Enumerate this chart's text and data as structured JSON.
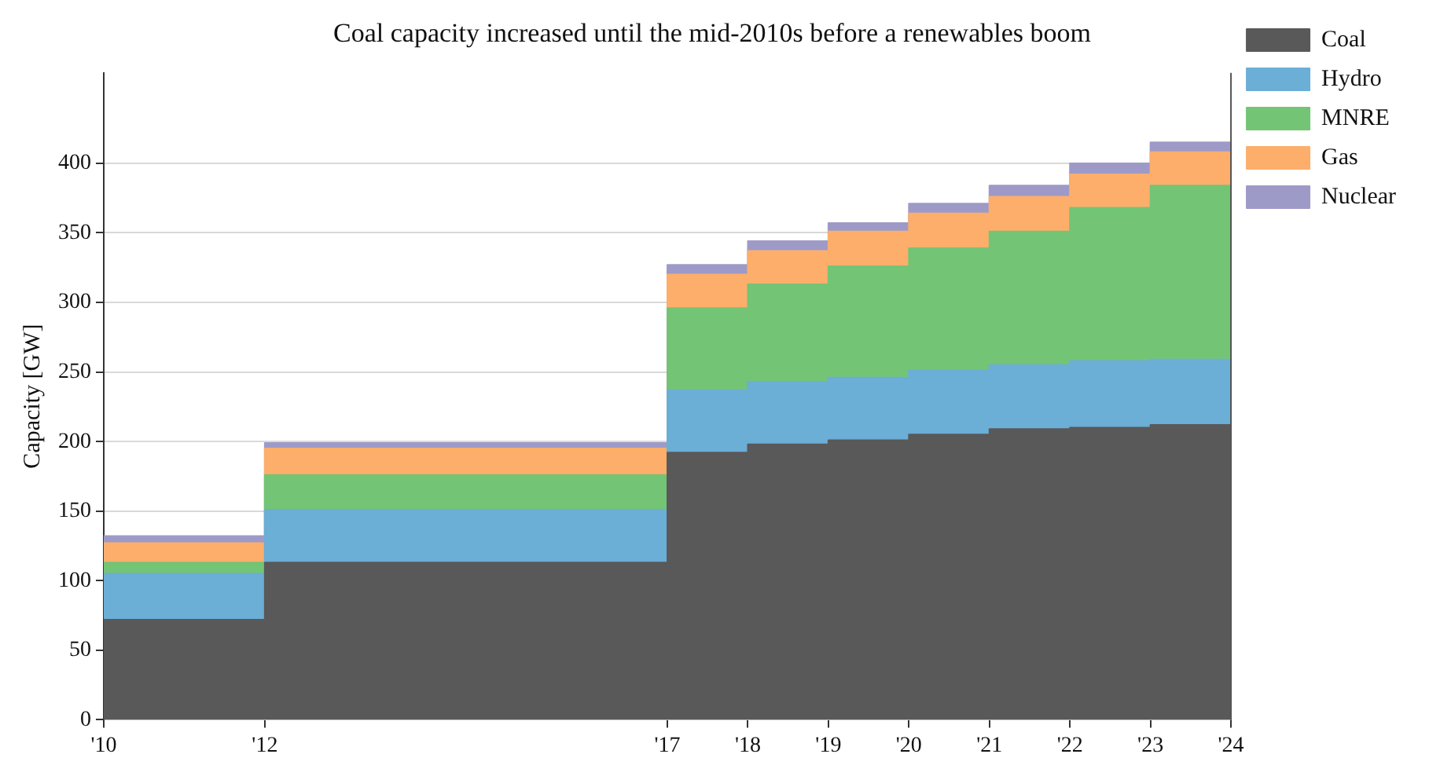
{
  "chart_data": {
    "type": "area",
    "title": "Coal capacity increased until the mid-2010s before a renewables boom",
    "ylabel": "Capacity [GW]",
    "stacked": true,
    "x": [
      2010,
      2012,
      2012,
      2017,
      2017,
      2018,
      2018,
      2019,
      2019,
      2020,
      2020,
      2021,
      2021,
      2022,
      2022,
      2023,
      2023,
      2024
    ],
    "series": [
      {
        "name": "Coal",
        "color": "#595959",
        "values": [
          72,
          72,
          113,
          113,
          192,
          192,
          198,
          198,
          201,
          201,
          205,
          205,
          209,
          209,
          210,
          210,
          212,
          212
        ]
      },
      {
        "name": "Hydro",
        "color": "#6baed6",
        "values": [
          33,
          33,
          38,
          38,
          45,
          45,
          45,
          45,
          45,
          45,
          46,
          46,
          46,
          46,
          48,
          48,
          47,
          47
        ]
      },
      {
        "name": "MNRE",
        "color": "#74c476",
        "values": [
          8,
          8,
          25,
          25,
          59,
          59,
          70,
          70,
          80,
          80,
          88,
          88,
          96,
          96,
          110,
          110,
          125,
          125
        ]
      },
      {
        "name": "Gas",
        "color": "#fdae6b",
        "values": [
          14,
          14,
          19,
          19,
          24,
          24,
          24,
          24,
          25,
          25,
          25,
          25,
          25,
          25,
          24,
          24,
          24,
          24
        ]
      },
      {
        "name": "Nuclear",
        "color": "#9e9ac8",
        "values": [
          5,
          5,
          4,
          4,
          7,
          7,
          7,
          7,
          6,
          6,
          7,
          7,
          8,
          8,
          8,
          8,
          7,
          7
        ]
      }
    ],
    "xlim": [
      2010,
      2024
    ],
    "xticks": [
      {
        "value": 2010,
        "label": "'10"
      },
      {
        "value": 2012,
        "label": "'12"
      },
      {
        "value": 2017,
        "label": "'17"
      },
      {
        "value": 2018,
        "label": "'18"
      },
      {
        "value": 2019,
        "label": "'19"
      },
      {
        "value": 2020,
        "label": "'20"
      },
      {
        "value": 2021,
        "label": "'21"
      },
      {
        "value": 2022,
        "label": "'22"
      },
      {
        "value": 2023,
        "label": "'23"
      },
      {
        "value": 2024,
        "label": "'24"
      }
    ],
    "ylim": [
      0,
      465
    ],
    "yticks": [
      0,
      50,
      100,
      150,
      200,
      250,
      300,
      350,
      400
    ],
    "grid": "y",
    "legend": "top right"
  }
}
